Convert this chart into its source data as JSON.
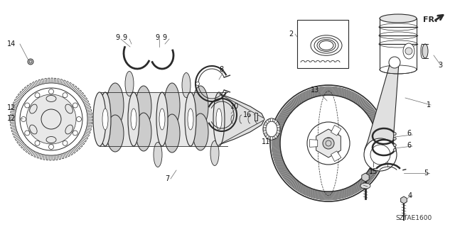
{
  "bg_color": "#ffffff",
  "fig_width": 6.4,
  "fig_height": 3.2,
  "dpi": 100,
  "diagram_code": "SZTAE1600",
  "fr_label": "FR.",
  "line_color": "#2a2a2a",
  "light_fill": "#e8e8e8",
  "mid_fill": "#d0d0d0",
  "label_fontsize": 7.0,
  "label_color": "#111111",
  "leader_color": "#666666"
}
